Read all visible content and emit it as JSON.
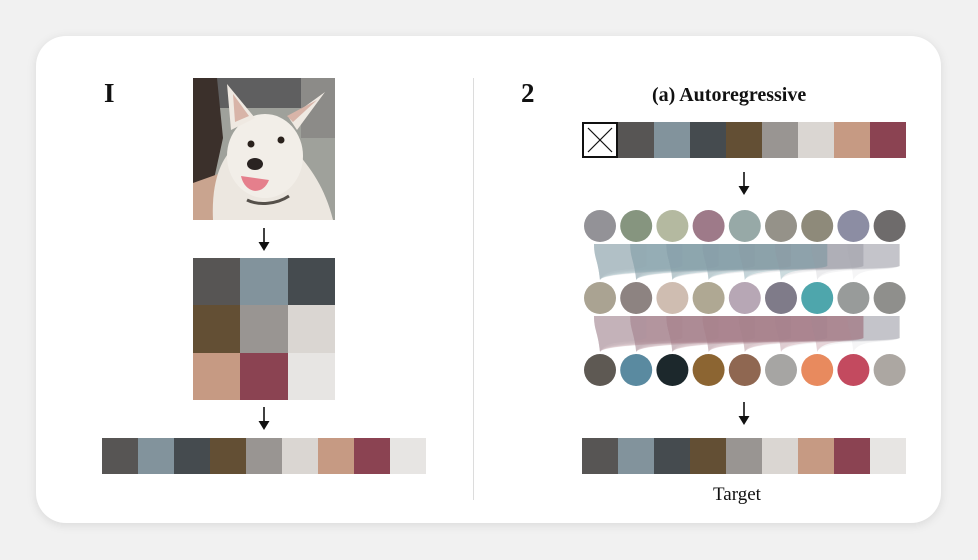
{
  "left": {
    "step": "I",
    "photo_description": "white dog",
    "grid_colors": [
      "#575554",
      "#82939c",
      "#454b4f",
      "#634f34",
      "#999592",
      "#dad6d2",
      "#c69a83",
      "#8b4352",
      "#e7e5e3"
    ],
    "sequence_colors": [
      "#575554",
      "#82939c",
      "#454b4f",
      "#634f34",
      "#999592",
      "#dad6d2",
      "#c69a83",
      "#8b4352",
      "#e7e5e3"
    ]
  },
  "right": {
    "step": "2",
    "title": "(a) Autoregressive",
    "input_colors": [
      "#575554",
      "#82939c",
      "#454b4f",
      "#634f34",
      "#999592",
      "#dad6d2",
      "#c69a83",
      "#8b4352"
    ],
    "row1_colors": [
      "#939297",
      "#86957f",
      "#b4b9a0",
      "#9e7a89",
      "#97a9a7",
      "#959289",
      "#8e8a7a",
      "#8c8da3",
      "#6e6b6b"
    ],
    "row2_colors": [
      "#aaa392",
      "#8d8381",
      "#cfbdb1",
      "#afa893",
      "#b7a7b5",
      "#7f7b89",
      "#4ea6ac",
      "#989b9a",
      "#8f8f8c"
    ],
    "row3_colors": [
      "#5e5953",
      "#5a8aa0",
      "#1c282c",
      "#8c6532",
      "#8f6751",
      "#a6a5a3",
      "#e88a5e",
      "#c34a5f",
      "#aca7a2"
    ],
    "target_colors": [
      "#575554",
      "#82939c",
      "#454b4f",
      "#634f34",
      "#999592",
      "#dad6d2",
      "#c69a83",
      "#8b4352",
      "#e7e5e3"
    ],
    "target_label": "Target",
    "attention_highlight_1": "#4ea6ac",
    "attention_highlight_2": "#b65a6b"
  }
}
